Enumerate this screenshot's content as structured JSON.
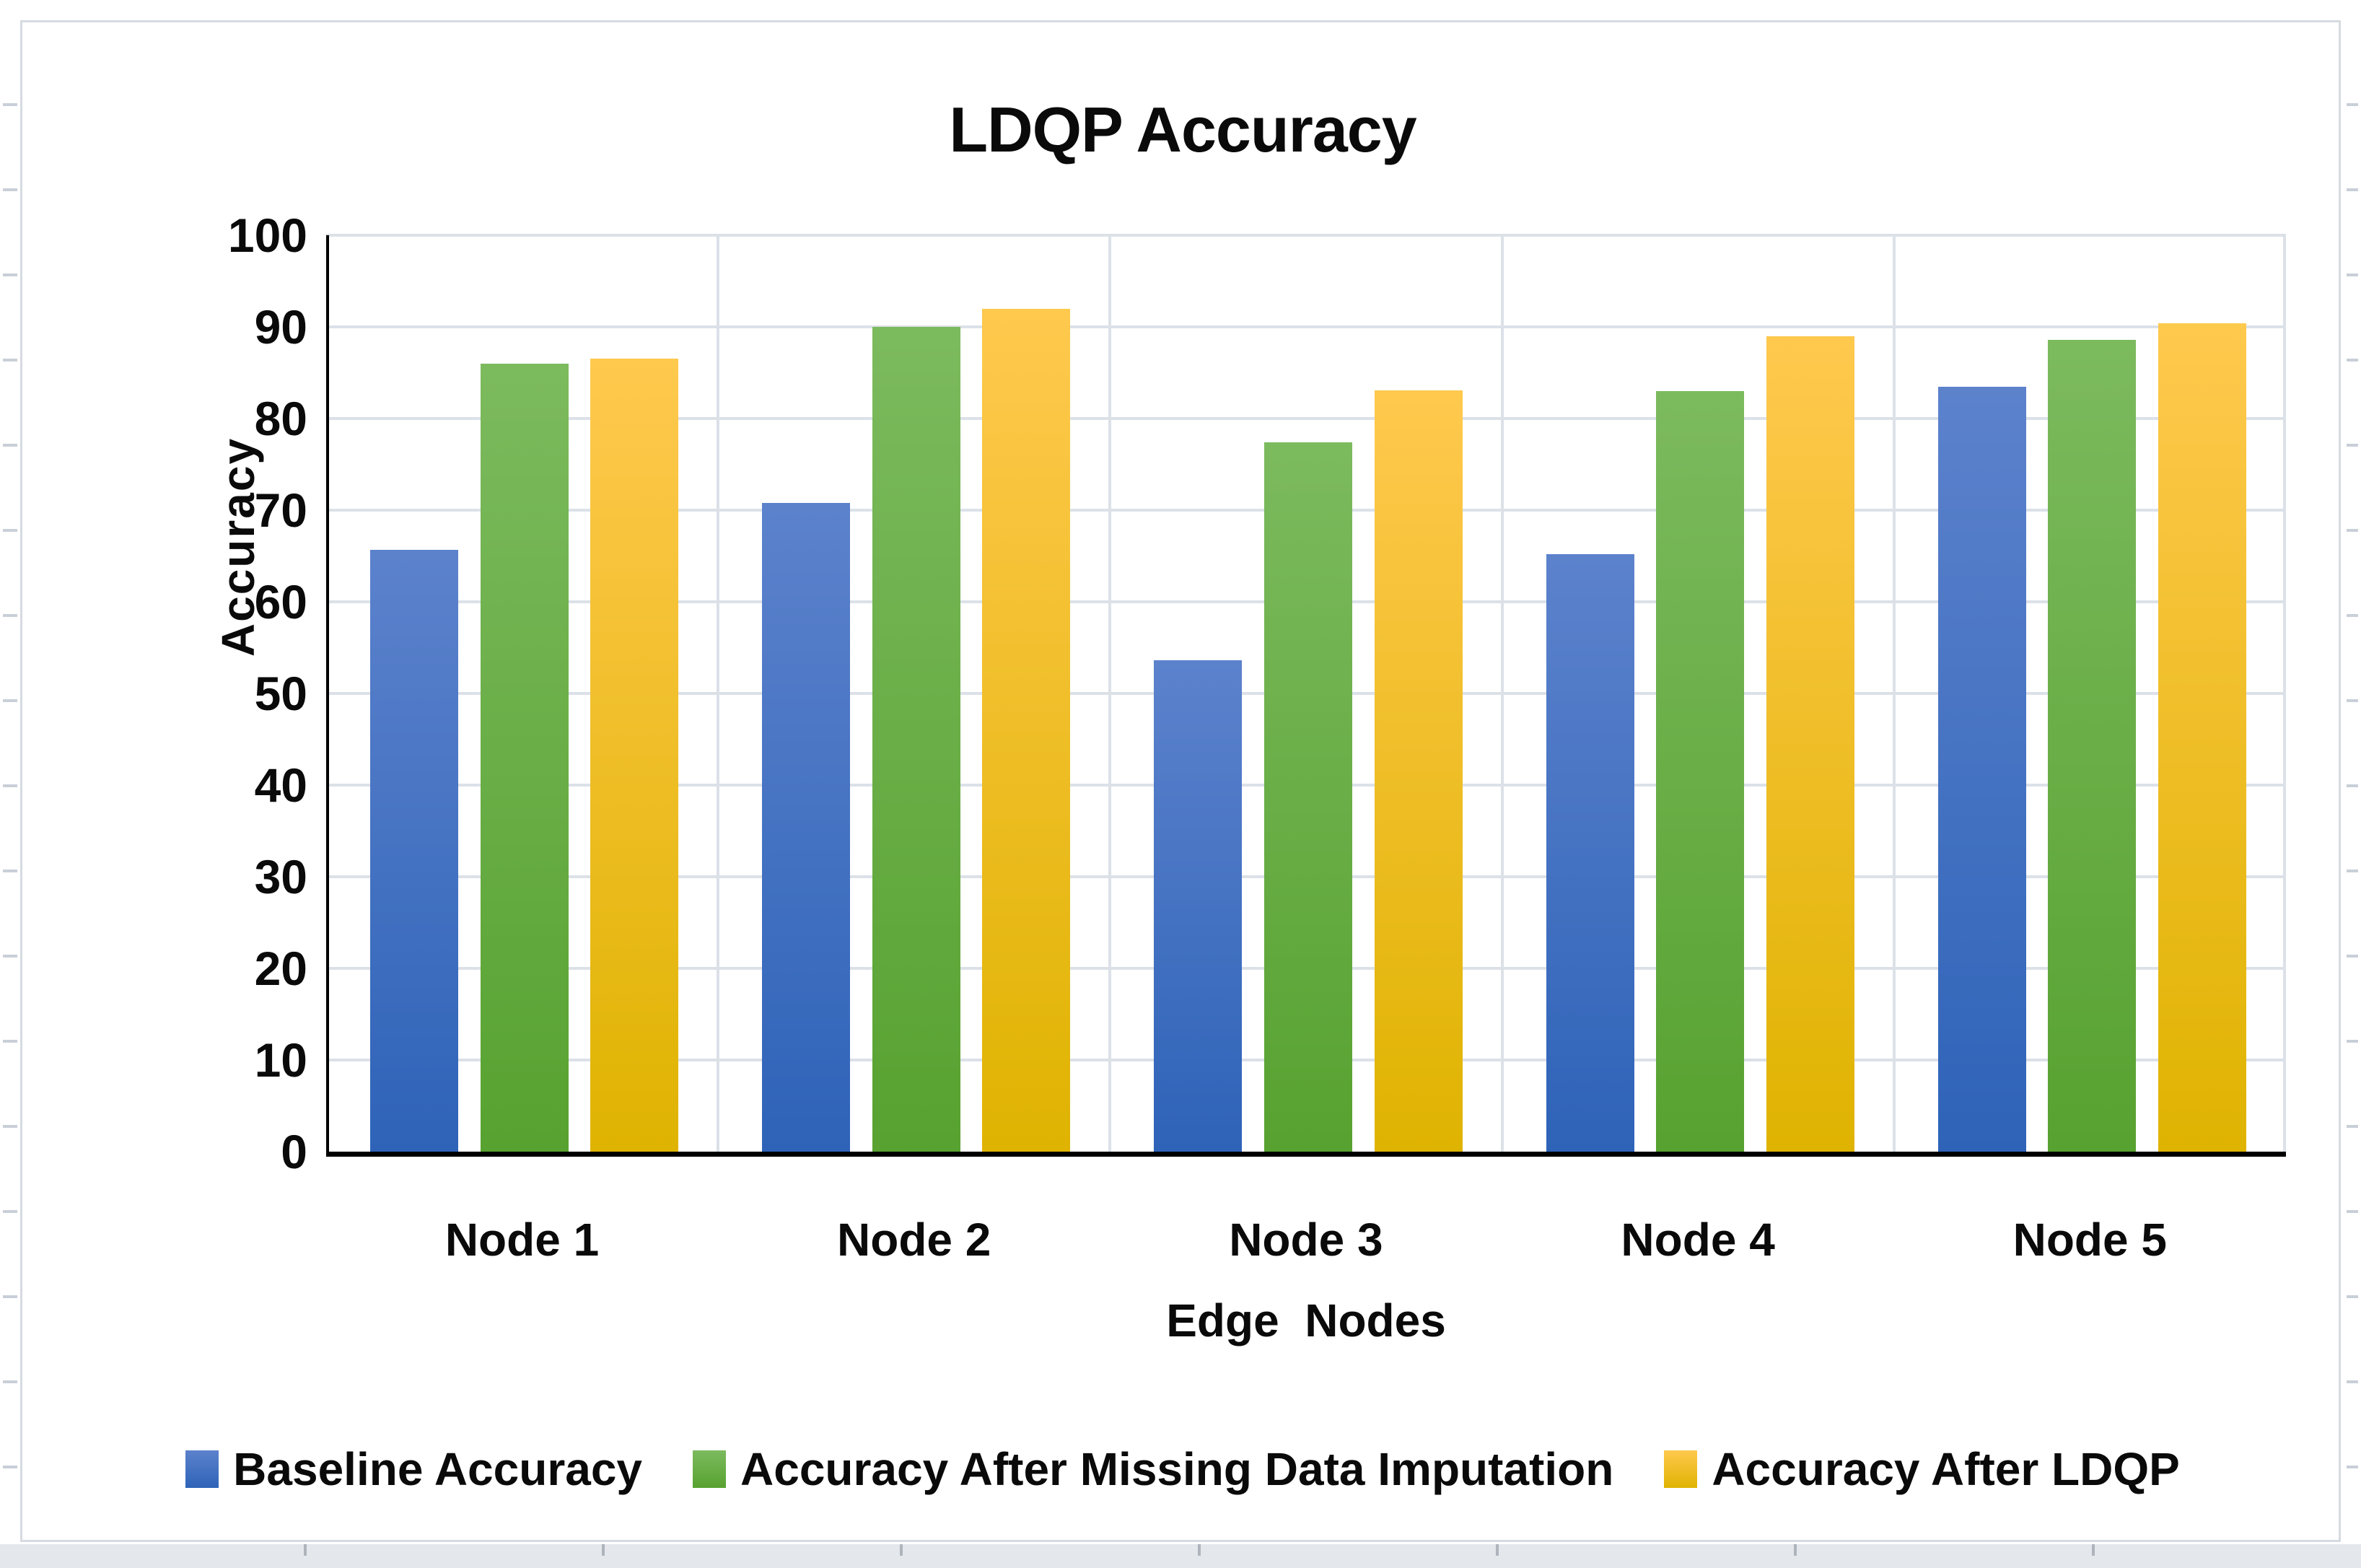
{
  "chart": {
    "title": "LDQP Accuracy",
    "y_axis_title": "Accuracy",
    "x_axis_title": "Edge  Nodes"
  },
  "chart_data": {
    "type": "bar",
    "title": "LDQP Accuracy",
    "xlabel": "Edge  Nodes",
    "ylabel": "Accuracy",
    "ylim": [
      0,
      100
    ],
    "yticks": [
      0,
      10,
      20,
      30,
      40,
      50,
      60,
      70,
      80,
      90,
      100
    ],
    "grid": true,
    "legend_position": "bottom",
    "categories": [
      "Node 1",
      "Node 2",
      "Node 3",
      "Node 4",
      "Node 5"
    ],
    "series": [
      {
        "name": "Baseline Accuracy",
        "color": "#4472C4",
        "gradient_top": "#5C82CC",
        "gradient_bottom": "#2E63B8",
        "values": [
          65.7,
          70.8,
          53.6,
          65.2,
          83.5
        ]
      },
      {
        "name": "Accuracy After Missing Data Imputation",
        "color": "#70AD47",
        "gradient_top": "#7CBA5E",
        "gradient_bottom": "#57A230",
        "values": [
          86.0,
          90.0,
          77.4,
          83.0,
          88.6
        ]
      },
      {
        "name": "Accuracy After LDQP",
        "color": "#FFC000",
        "gradient_top": "#FFC94E",
        "gradient_bottom": "#DFB301",
        "values": [
          86.5,
          92.0,
          83.1,
          89.0,
          90.4
        ]
      }
    ]
  }
}
